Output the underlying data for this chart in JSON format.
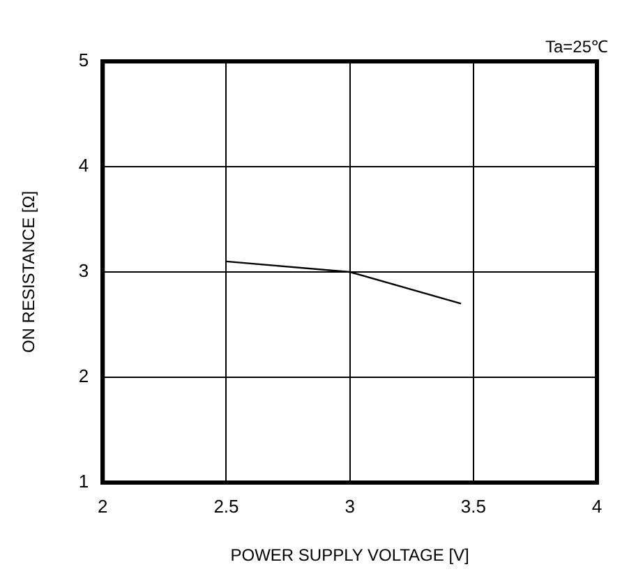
{
  "chart_data": {
    "type": "line",
    "xlabel": "POWER SUPPLY VOLTAGE [V]",
    "ylabel": "ON RESISTANCE [Ω]",
    "annotations": [
      "Ta=25℃"
    ],
    "x": [
      2.5,
      3.0,
      3.45
    ],
    "series": [
      {
        "color": "#000000",
        "values": [
          3.1,
          3.0,
          2.7
        ]
      }
    ],
    "xlim": [
      2,
      4
    ],
    "xticks": [
      2,
      2.5,
      3,
      3.5,
      4
    ],
    "ylim": [
      1,
      5
    ],
    "yticks": [
      1,
      2,
      3,
      4,
      5
    ],
    "grid": true,
    "marker": "none",
    "line_style": "solid"
  }
}
